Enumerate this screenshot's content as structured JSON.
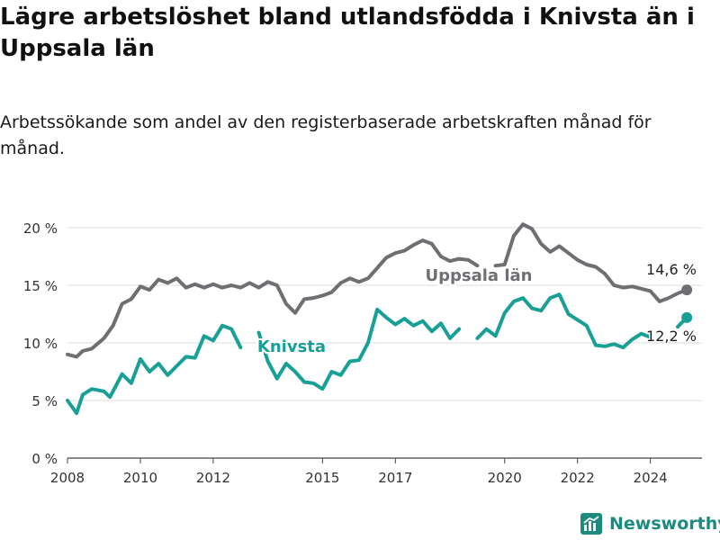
{
  "title": "Lägre arbetslöshet bland utlandsfödda i Knivsta än i Uppsala län",
  "subtitle": "Arbetssökande som andel av den registerbaserade arbetskraften månad för månad.",
  "brand": "Newsworthy",
  "chart_data": {
    "type": "line",
    "y_ticks": [
      "0 %",
      "5 %",
      "10 %",
      "15 %",
      "20 %"
    ],
    "y_tick_values": [
      0,
      5,
      10,
      15,
      20
    ],
    "ylim": [
      0,
      20
    ],
    "x_ticks": [
      "2008",
      "2010",
      "2012",
      "2015",
      "2017",
      "2020",
      "2022",
      "2024"
    ],
    "x_tick_values": [
      "2008-01",
      "2010-01",
      "2012-01",
      "2015-01",
      "2017-01",
      "2020-01",
      "2022-01",
      "2024-01"
    ],
    "xlim": [
      "2008-01",
      "2025-06"
    ],
    "grid": true,
    "series": [
      {
        "name": "Uppsala län",
        "color": "#6f6f73",
        "end_label": "14,6 %",
        "points": [
          [
            "2008-01",
            9.0
          ],
          [
            "2008-04",
            8.8
          ],
          [
            "2008-06",
            9.3
          ],
          [
            "2008-09",
            9.5
          ],
          [
            "2009-01",
            10.4
          ],
          [
            "2009-04",
            11.5
          ],
          [
            "2009-07",
            13.4
          ],
          [
            "2009-10",
            13.8
          ],
          [
            "2010-01",
            14.9
          ],
          [
            "2010-04",
            14.6
          ],
          [
            "2010-07",
            15.5
          ],
          [
            "2010-10",
            15.2
          ],
          [
            "2011-01",
            15.6
          ],
          [
            "2011-04",
            14.8
          ],
          [
            "2011-07",
            15.1
          ],
          [
            "2011-10",
            14.8
          ],
          [
            "2012-01",
            15.1
          ],
          [
            "2012-04",
            14.8
          ],
          [
            "2012-07",
            15.0
          ],
          [
            "2012-10",
            14.8
          ],
          [
            "2013-01",
            15.2
          ],
          [
            "2013-04",
            14.8
          ],
          [
            "2013-07",
            15.3
          ],
          [
            "2013-10",
            15.0
          ],
          [
            "2014-01",
            13.4
          ],
          [
            "2014-04",
            12.6
          ],
          [
            "2014-07",
            13.8
          ],
          [
            "2014-10",
            13.9
          ],
          [
            "2015-01",
            14.1
          ],
          [
            "2015-04",
            14.4
          ],
          [
            "2015-07",
            15.2
          ],
          [
            "2015-10",
            15.6
          ],
          [
            "2016-01",
            15.3
          ],
          [
            "2016-04",
            15.6
          ],
          [
            "2016-07",
            16.5
          ],
          [
            "2016-10",
            17.4
          ],
          [
            "2017-01",
            17.8
          ],
          [
            "2017-04",
            18.0
          ],
          [
            "2017-07",
            18.5
          ],
          [
            "2017-10",
            18.9
          ],
          [
            "2018-01",
            18.6
          ],
          [
            "2018-04",
            17.5
          ],
          [
            "2018-07",
            17.1
          ],
          [
            "2018-10",
            17.3
          ],
          [
            "2019-01",
            17.2
          ],
          [
            "2019-04",
            16.7
          ],
          [
            "2019-07",
            null
          ],
          [
            "2019-10",
            16.7
          ],
          [
            "2020-01",
            16.8
          ],
          [
            "2020-04",
            19.3
          ],
          [
            "2020-07",
            20.3
          ],
          [
            "2020-10",
            19.9
          ],
          [
            "2021-01",
            18.6
          ],
          [
            "2021-04",
            17.9
          ],
          [
            "2021-07",
            18.4
          ],
          [
            "2021-10",
            17.8
          ],
          [
            "2022-01",
            17.2
          ],
          [
            "2022-04",
            16.8
          ],
          [
            "2022-07",
            16.6
          ],
          [
            "2022-10",
            16.0
          ],
          [
            "2023-01",
            15.0
          ],
          [
            "2023-04",
            14.8
          ],
          [
            "2023-07",
            14.9
          ],
          [
            "2023-10",
            14.7
          ],
          [
            "2024-01",
            14.5
          ],
          [
            "2024-04",
            13.6
          ],
          [
            "2024-07",
            13.9
          ],
          [
            "2024-10",
            14.3
          ],
          [
            "2025-01",
            14.6
          ]
        ]
      },
      {
        "name": "Knivsta",
        "color": "#18a097",
        "end_label": "12,2 %",
        "points": [
          [
            "2008-01",
            5.0
          ],
          [
            "2008-04",
            3.9
          ],
          [
            "2008-06",
            5.5
          ],
          [
            "2008-09",
            6.0
          ],
          [
            "2009-01",
            5.8
          ],
          [
            "2009-03",
            5.3
          ],
          [
            "2009-07",
            7.3
          ],
          [
            "2009-10",
            6.5
          ],
          [
            "2010-01",
            8.6
          ],
          [
            "2010-04",
            7.5
          ],
          [
            "2010-07",
            8.2
          ],
          [
            "2010-10",
            7.2
          ],
          [
            "2011-01",
            8.0
          ],
          [
            "2011-04",
            8.8
          ],
          [
            "2011-07",
            8.7
          ],
          [
            "2011-10",
            10.6
          ],
          [
            "2012-01",
            10.2
          ],
          [
            "2012-04",
            11.5
          ],
          [
            "2012-07",
            11.2
          ],
          [
            "2012-10",
            9.6
          ],
          [
            "2013-01",
            null
          ],
          [
            "2013-04",
            10.9
          ],
          [
            "2013-07",
            8.4
          ],
          [
            "2013-10",
            6.9
          ],
          [
            "2014-01",
            8.2
          ],
          [
            "2014-04",
            7.5
          ],
          [
            "2014-07",
            6.6
          ],
          [
            "2014-10",
            6.5
          ],
          [
            "2015-01",
            6.0
          ],
          [
            "2015-04",
            7.5
          ],
          [
            "2015-07",
            7.2
          ],
          [
            "2015-10",
            8.4
          ],
          [
            "2016-01",
            8.5
          ],
          [
            "2016-04",
            10.0
          ],
          [
            "2016-07",
            12.9
          ],
          [
            "2016-10",
            12.2
          ],
          [
            "2017-01",
            11.6
          ],
          [
            "2017-04",
            12.1
          ],
          [
            "2017-07",
            11.5
          ],
          [
            "2017-10",
            11.9
          ],
          [
            "2018-01",
            11.0
          ],
          [
            "2018-04",
            11.7
          ],
          [
            "2018-07",
            10.4
          ],
          [
            "2018-10",
            11.2
          ],
          [
            "2019-01",
            null
          ],
          [
            "2019-04",
            10.4
          ],
          [
            "2019-07",
            11.2
          ],
          [
            "2019-10",
            10.6
          ],
          [
            "2020-01",
            12.6
          ],
          [
            "2020-04",
            13.6
          ],
          [
            "2020-07",
            13.9
          ],
          [
            "2020-10",
            13.0
          ],
          [
            "2021-01",
            12.8
          ],
          [
            "2021-04",
            13.9
          ],
          [
            "2021-07",
            14.2
          ],
          [
            "2021-10",
            12.5
          ],
          [
            "2022-01",
            12.0
          ],
          [
            "2022-04",
            11.5
          ],
          [
            "2022-07",
            9.8
          ],
          [
            "2022-10",
            9.7
          ],
          [
            "2023-01",
            9.9
          ],
          [
            "2023-04",
            9.6
          ],
          [
            "2023-07",
            10.3
          ],
          [
            "2023-10",
            10.8
          ],
          [
            "2024-01",
            10.5
          ],
          [
            "2024-04",
            null
          ],
          [
            "2024-10",
            11.4
          ],
          [
            "2025-01",
            12.2
          ]
        ]
      }
    ]
  }
}
